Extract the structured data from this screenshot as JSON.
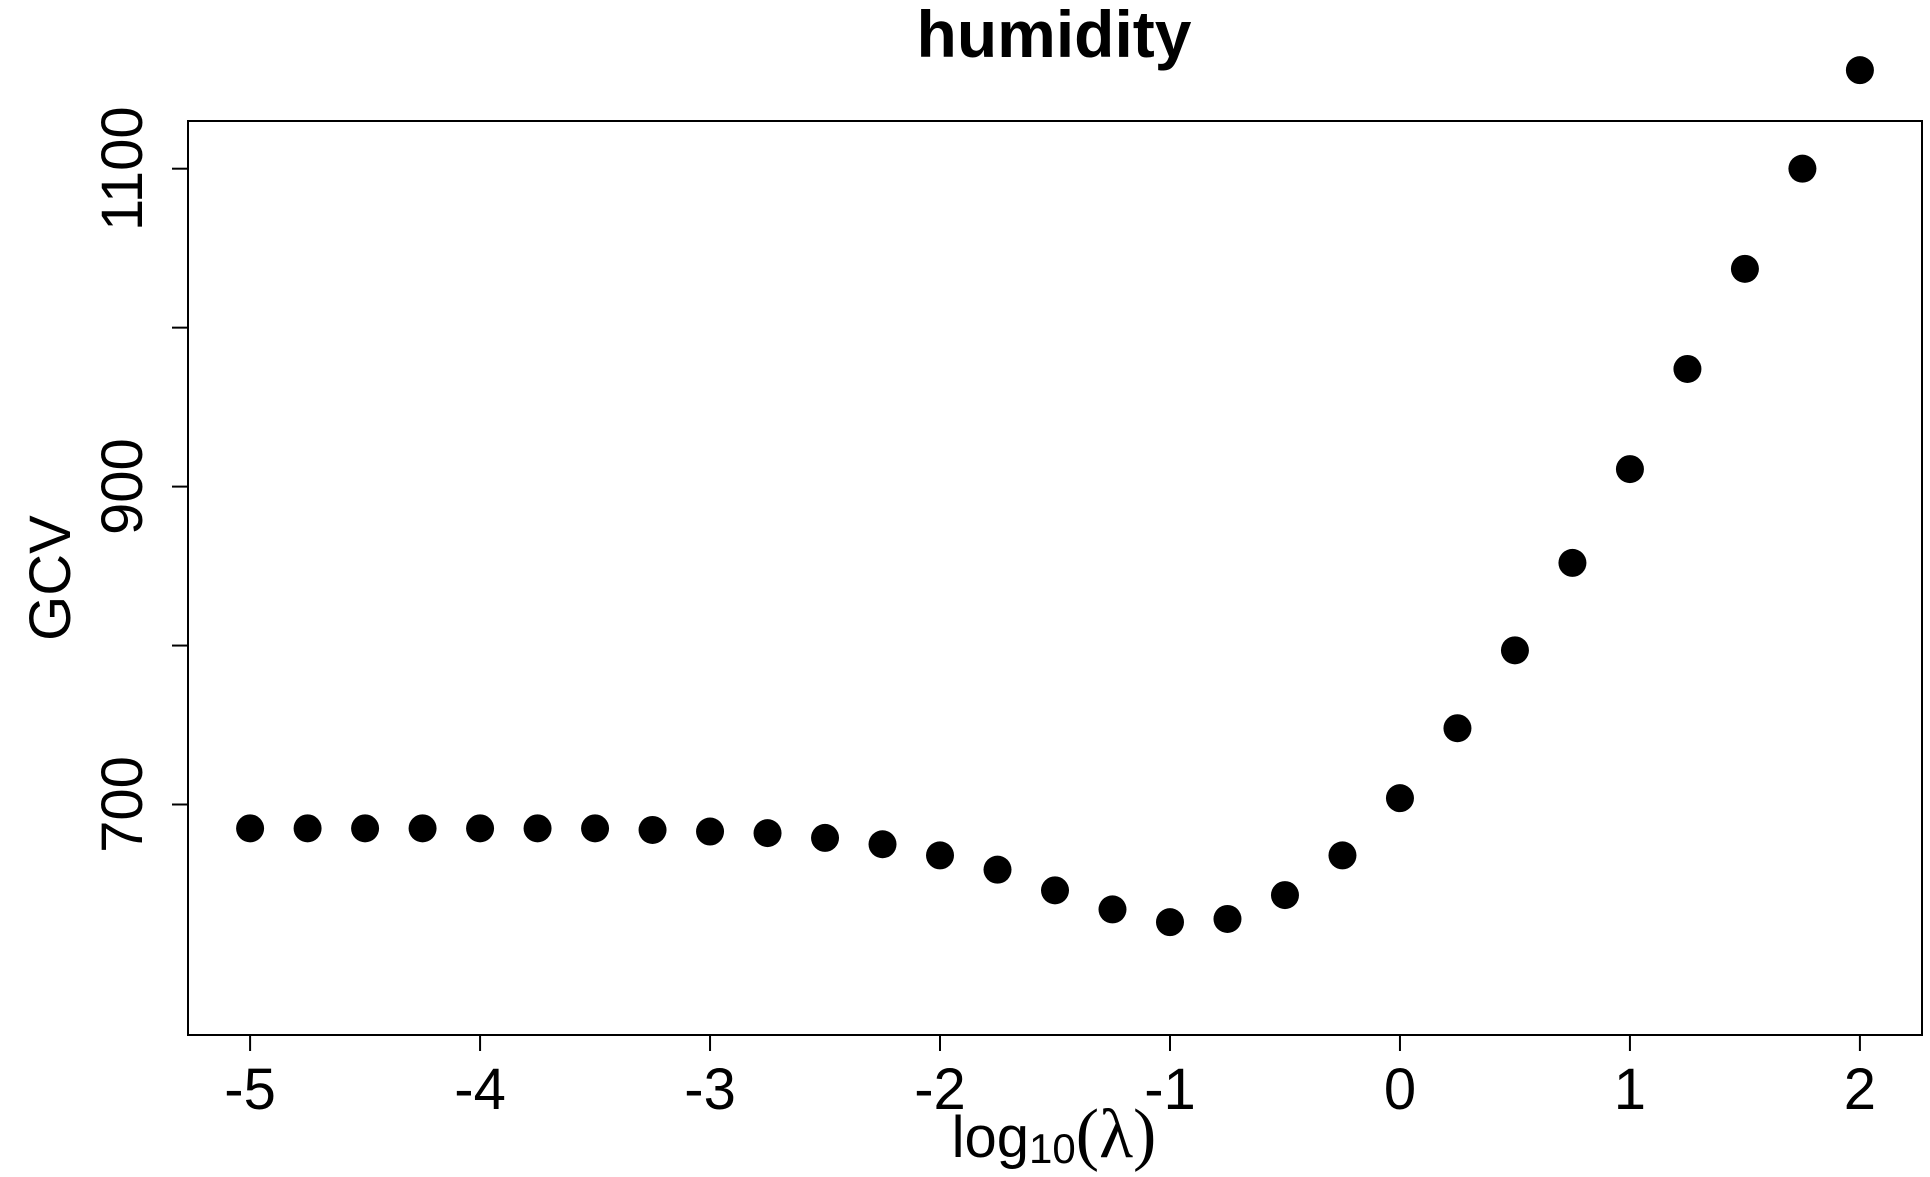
{
  "chart_data": {
    "type": "scatter",
    "title": "humidity",
    "xlabel": "log10(λ)",
    "xlabel_parts": {
      "base": "log",
      "subscript": "10",
      "argument": "λ"
    },
    "ylabel": "GCV",
    "xlim": [
      -5.27,
      2.27
    ],
    "ylim": [
      555,
      1130
    ],
    "x_ticks": [
      -5,
      -4,
      -3,
      -2,
      -1,
      0,
      1,
      2
    ],
    "x_tick_labels": [
      "-5",
      "-4",
      "-3",
      "-2",
      "-1",
      "0",
      "1",
      "2"
    ],
    "y_ticks": [
      700,
      800,
      900,
      1000,
      1100
    ],
    "y_tick_labels": [
      "700",
      "",
      "900",
      "",
      "1100"
    ],
    "grid": false,
    "legend": "none",
    "marker_color": "#000000",
    "x": [
      -5,
      -4.75,
      -4.5,
      -4.25,
      -4,
      -3.75,
      -3.5,
      -3.25,
      -3,
      -2.75,
      -2.5,
      -2.25,
      -2,
      -1.75,
      -1.5,
      -1.25,
      -1,
      -0.75,
      -0.5,
      -0.25,
      0,
      0.25,
      0.5,
      0.75,
      1,
      1.25,
      1.5,
      1.75,
      2
    ],
    "y": [
      685,
      685,
      685,
      685,
      685,
      685,
      685,
      684,
      683,
      682,
      679,
      675,
      668,
      659,
      646,
      634,
      626,
      628,
      643,
      668,
      704,
      748,
      797,
      852,
      911,
      974,
      1037,
      1100,
      1162
    ]
  }
}
